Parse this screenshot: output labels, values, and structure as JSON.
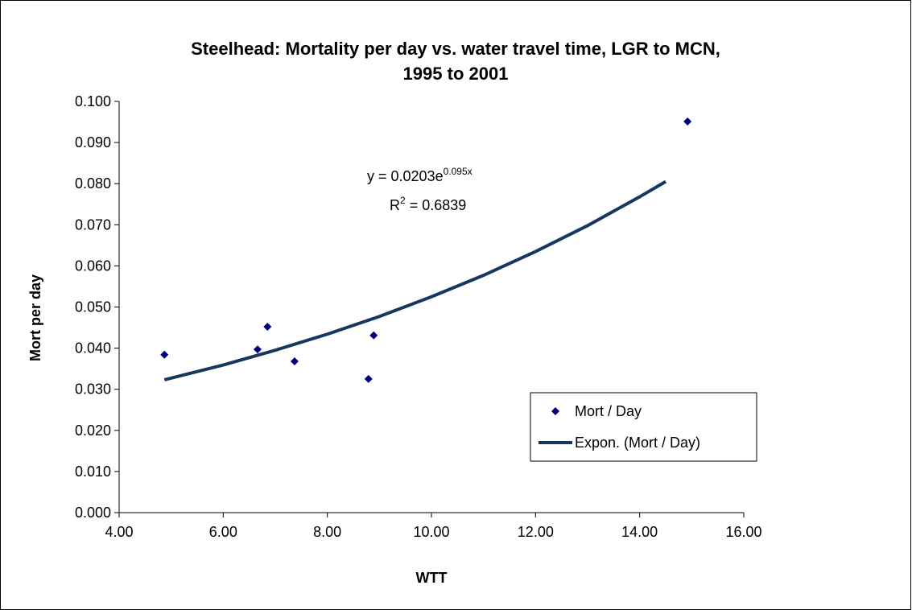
{
  "chart_data": {
    "type": "scatter",
    "title": [
      "Steelhead: Mortality per day vs. water travel time, LGR to MCN,",
      "1995 to 2001"
    ],
    "x_label": "WTT",
    "y_label": "Mort per day",
    "xlim": [
      4,
      16
    ],
    "xticks": [
      {
        "value": 4,
        "label": "4.00"
      },
      {
        "value": 6,
        "label": "6.00"
      },
      {
        "value": 8,
        "label": "8.00"
      },
      {
        "value": 10,
        "label": "10.00"
      },
      {
        "value": 12,
        "label": "12.00"
      },
      {
        "value": 14,
        "label": "14.00"
      },
      {
        "value": 16,
        "label": "16.00"
      }
    ],
    "ylim": [
      0,
      0.1
    ],
    "yticks": [
      {
        "value": 0,
        "label": "0.000"
      },
      {
        "value": 0.01,
        "label": "0.010"
      },
      {
        "value": 0.02,
        "label": "0.020"
      },
      {
        "value": 0.03,
        "label": "0.030"
      },
      {
        "value": 0.04,
        "label": "0.040"
      },
      {
        "value": 0.05,
        "label": "0.050"
      },
      {
        "value": 0.06,
        "label": "0.060"
      },
      {
        "value": 0.07,
        "label": "0.070"
      },
      {
        "value": 0.08,
        "label": "0.080"
      },
      {
        "value": 0.09,
        "label": "0.090"
      },
      {
        "value": 0.1,
        "label": "0.100"
      }
    ],
    "grid": false,
    "legend": "right",
    "series": [
      {
        "name": "Mort / Day",
        "color": "#000080",
        "marker": "diamond",
        "x": [
          4.87,
          6.66,
          6.85,
          7.37,
          8.79,
          8.89,
          14.92
        ],
        "values": [
          0.0384,
          0.0397,
          0.0452,
          0.0368,
          0.0325,
          0.0431,
          0.0951
        ]
      },
      {
        "name": "Expon. (Mort / Day)",
        "color": "#17375e",
        "marker": "line",
        "x": [
          4.87,
          6,
          7,
          8,
          9,
          10,
          11,
          12,
          13,
          14,
          14.5
        ],
        "values": [
          0.0323,
          0.0359,
          0.0395,
          0.0434,
          0.0477,
          0.0525,
          0.0577,
          0.0635,
          0.0698,
          0.0768,
          0.0805
        ]
      }
    ],
    "equation": {
      "text": "y = 0.0203e",
      "superscript": "0.095x"
    },
    "r_squared": {
      "text": "R",
      "superscript": "2",
      "rest": " = 0.6839"
    }
  }
}
